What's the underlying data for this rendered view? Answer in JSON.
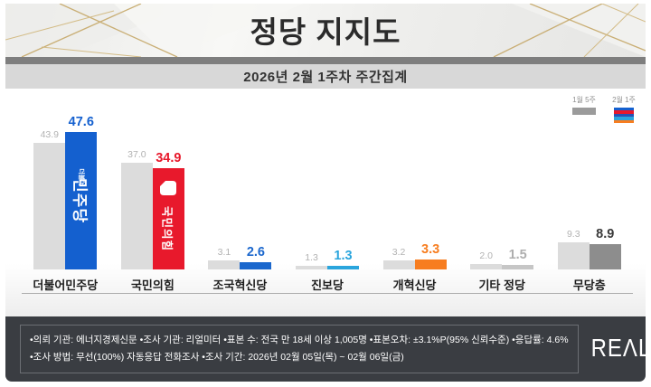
{
  "header": {
    "title": "정당 지지도",
    "subtitle": "2026년 2월 1주차 주간집계"
  },
  "legend": {
    "prev_label": "1월 5주",
    "prev_color": "#9b9b9b",
    "cur_label": "2월 1주",
    "cur_stripe_colors": [
      "#1460cf",
      "#e8192c",
      "#2753b5",
      "#2aa5dd",
      "#f77d1f"
    ]
  },
  "chart_data": {
    "type": "bar",
    "title": "정당 지지도",
    "subtitle": "2026년 2월 1주차 주간집계",
    "unit": "%",
    "ylim": [
      0,
      50
    ],
    "grid": false,
    "legend_position": "top-right",
    "categories": [
      "더불어민주당",
      "국민의힘",
      "조국혁신당",
      "진보당",
      "개혁신당",
      "기타 정당",
      "무당층"
    ],
    "series": [
      {
        "name": "1월 5주",
        "values": [
          43.9,
          37.0,
          3.1,
          1.3,
          3.2,
          2.0,
          9.3
        ]
      },
      {
        "name": "2월 1주",
        "values": [
          47.6,
          34.9,
          2.6,
          1.3,
          3.3,
          1.5,
          8.9
        ]
      }
    ],
    "prev_bar_color": "#dcdcdc",
    "prev_value_color": "#b2b2b2",
    "current_bar_colors": [
      "#1460cf",
      "#e8192c",
      "#1b67cd",
      "#2aa5dd",
      "#f77d1f",
      "#c6c6c6",
      "#8d8d8d"
    ],
    "current_value_colors": [
      "#1460cf",
      "#e8192c",
      "#1b67cd",
      "#2aa5dd",
      "#f77d1f",
      "#aeaeae",
      "#3a3a3a"
    ],
    "bar_logos": {
      "dpk_small": "더불어",
      "dpk_big": "민주당",
      "ppp_text": "국민의힘"
    }
  },
  "footer": {
    "line1": "•의뢰 기관: 에너지경제신문  •조사 기관: 리얼미터 •표본 수: 전국 만 18세 이상 1,005명 •표본오차: ±3.1%P(95% 신뢰수준) •응답률: 4.6%",
    "line2": "•조사 방법: 무선(100%) 자동응답 전화조사 •조사 기간: 2026년 02월 05일(목) ~ 02월 06일(금)",
    "brand": "REΛLMETER"
  }
}
